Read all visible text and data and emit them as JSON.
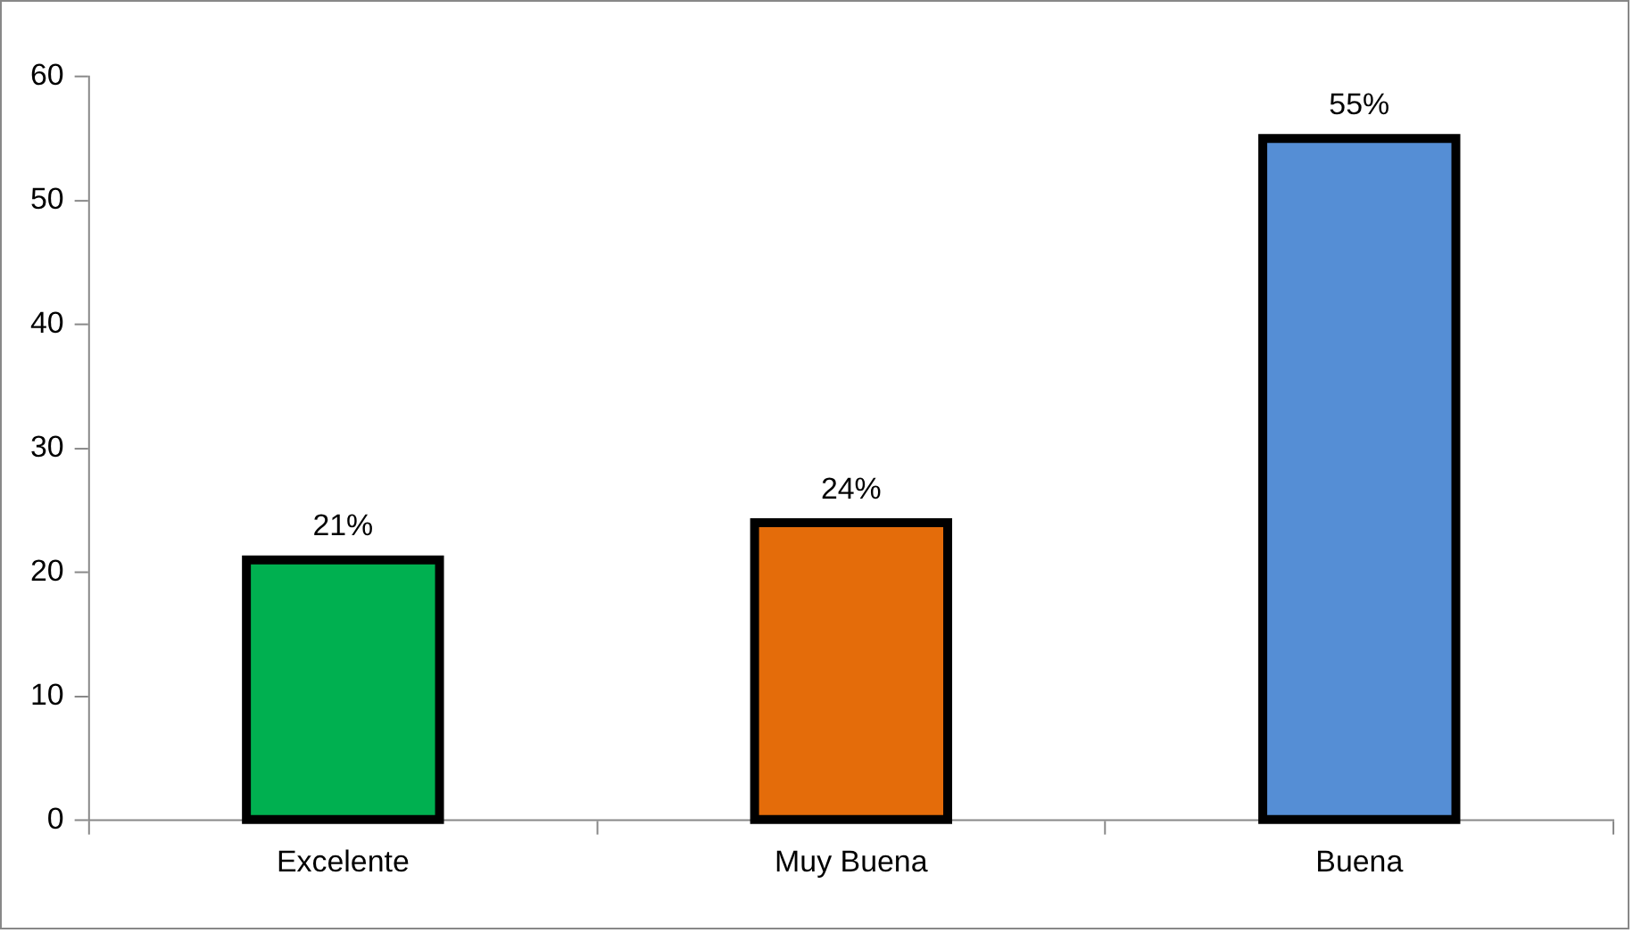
{
  "chart_data": {
    "type": "bar",
    "categories": [
      "Excelente",
      "Muy Buena",
      "Buena"
    ],
    "values": [
      21,
      24,
      55
    ],
    "colors": [
      "#00b050",
      "#e46c0a",
      "#558ed5"
    ],
    "value_labels": [
      "21%",
      "24%",
      "55%"
    ],
    "ylim": [
      0,
      60
    ],
    "yticks": [
      0,
      10,
      20,
      30,
      40,
      50,
      60
    ],
    "grid": false,
    "legend": false
  }
}
